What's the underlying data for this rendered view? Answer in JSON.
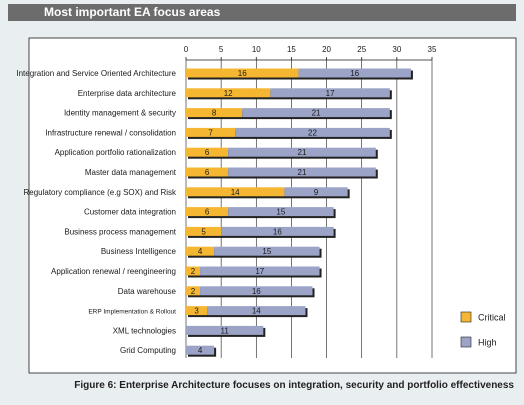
{
  "header": {
    "title": "Most important EA focus areas"
  },
  "caption": "Figure 6: Enterprise Architecture focuses on integration, security and portfolio effectiveness",
  "colors": {
    "critical": "#f5b731",
    "high": "#9ba3c7",
    "shadow": "#222222",
    "grid": "#1a1a1a",
    "panel": "#ffffff"
  },
  "chart_data": {
    "type": "bar",
    "orientation": "horizontal",
    "stacked": true,
    "title": "",
    "xlabel": "",
    "ylabel": "",
    "xlim": [
      0,
      35
    ],
    "xticks": [
      "0",
      "5",
      "10",
      "15",
      "20",
      "25",
      "30",
      "35"
    ],
    "grid": "vertical",
    "legend_position": "bottom-right",
    "categories": [
      "Integration and Service Oriented Architecture",
      "Enterprise data architecture",
      "Identity management & security",
      "Infrastructure renewal / consolidation",
      "Application portfolio rationalization",
      "Master data management",
      "Regulatory compliance (e.g SOX) and Risk",
      "Customer data integration",
      "Business process management",
      "Business Intelligence",
      "Application renewal / reengineering",
      "Data warehouse",
      "ERP Implementation & Rollout",
      "XML technologies",
      "Grid Computing"
    ],
    "series": [
      {
        "name": "Critical",
        "values": [
          16,
          12,
          8,
          7,
          6,
          6,
          14,
          6,
          5,
          4,
          2,
          2,
          3,
          0,
          0
        ]
      },
      {
        "name": "High",
        "values": [
          16,
          17,
          21,
          22,
          21,
          21,
          9,
          15,
          16,
          15,
          17,
          16,
          14,
          11,
          4
        ]
      }
    ]
  }
}
